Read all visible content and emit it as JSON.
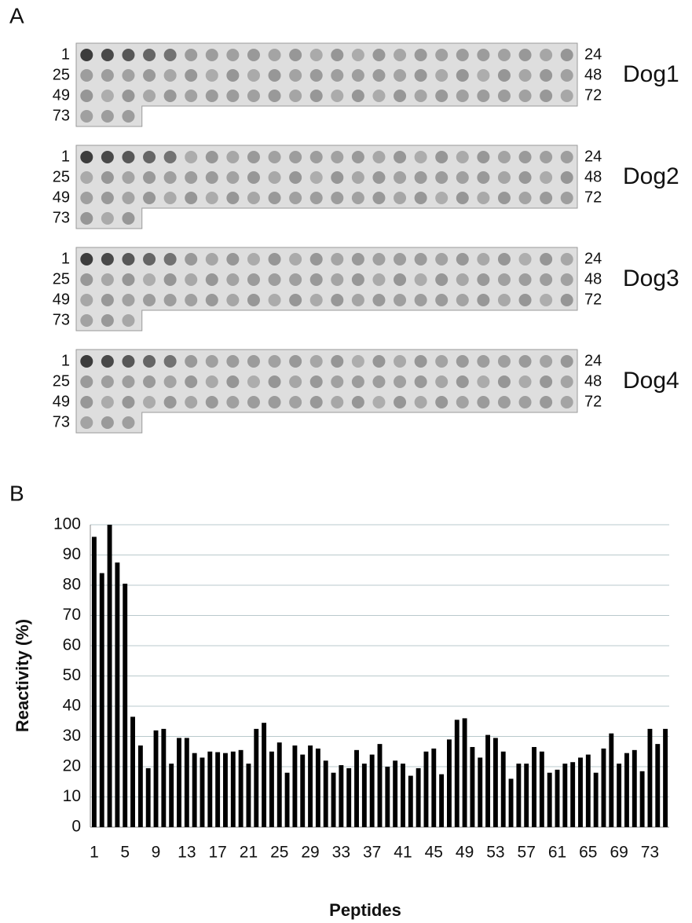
{
  "panel_labels": [
    "A",
    "B"
  ],
  "blots": [
    {
      "name": "Dog1",
      "left_labels": [
        "1",
        "25",
        "49",
        "73"
      ],
      "right_labels": [
        "24",
        "48",
        "72"
      ]
    },
    {
      "name": "Dog2",
      "left_labels": [
        "1",
        "25",
        "49",
        "73"
      ],
      "right_labels": [
        "24",
        "48",
        "72"
      ]
    },
    {
      "name": "Dog3",
      "left_labels": [
        "1",
        "25",
        "49",
        "73"
      ],
      "right_labels": [
        "24",
        "48",
        "72"
      ]
    },
    {
      "name": "Dog4",
      "left_labels": [
        "1",
        "25",
        "49",
        "73"
      ],
      "right_labels": [
        "24",
        "48",
        "72"
      ]
    }
  ],
  "chart_data": {
    "type": "bar",
    "x_label": "Peptides",
    "y_label": "Reactivity (%)",
    "categories": [
      "1",
      null,
      null,
      null,
      "5",
      null,
      null,
      null,
      "9",
      null,
      null,
      null,
      "13",
      null,
      null,
      null,
      "17",
      null,
      null,
      null,
      "21",
      null,
      null,
      null,
      "25",
      null,
      null,
      null,
      "29",
      null,
      null,
      null,
      "33",
      null,
      null,
      null,
      "37",
      null,
      null,
      null,
      "41",
      null,
      null,
      null,
      "45",
      null,
      null,
      null,
      "49",
      null,
      null,
      null,
      "53",
      null,
      null,
      null,
      "57",
      null,
      null,
      null,
      "61",
      null,
      null,
      null,
      "65",
      null,
      null,
      null,
      "69",
      null,
      null,
      null,
      "73",
      null,
      null
    ],
    "values": [
      96,
      84,
      100,
      87.5,
      80.5,
      36.5,
      27,
      19.5,
      32,
      32.5,
      21,
      29.5,
      29.5,
      24.5,
      23,
      25,
      24.8,
      24.5,
      25,
      25.5,
      21,
      32.5,
      34.5,
      25,
      28,
      18,
      27,
      24,
      27,
      26,
      22,
      18,
      20.5,
      19.5,
      25.5,
      21,
      24,
      27.5,
      20,
      22,
      21,
      17,
      19.5,
      25,
      26,
      17.5,
      29,
      35.5,
      36,
      26.5,
      23,
      30.5,
      29.5,
      25,
      16,
      21,
      21,
      26.5,
      25,
      18,
      19,
      21,
      21.5,
      23,
      24,
      18,
      26,
      31,
      21,
      24.5,
      25.5,
      18.5,
      32.5,
      27.5,
      32.5
    ],
    "color": "#000000",
    "ylim": [
      0,
      100
    ],
    "yticks": [
      0,
      10,
      20,
      30,
      40,
      50,
      60,
      70,
      80,
      90,
      100
    ],
    "grid": true
  }
}
